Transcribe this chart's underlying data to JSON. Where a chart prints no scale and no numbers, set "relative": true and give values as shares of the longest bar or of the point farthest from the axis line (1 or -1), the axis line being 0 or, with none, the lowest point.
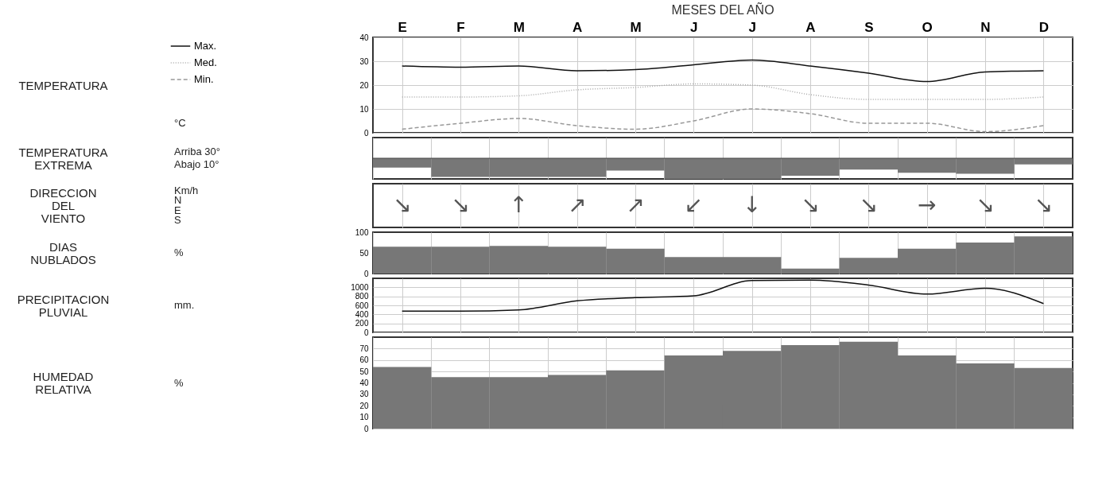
{
  "chart_data": [
    {
      "type": "line",
      "title": "MESES DEL AÑO",
      "ylabel": "TEMPERATURA",
      "annotations": [
        "°C"
      ],
      "categories": [
        "E",
        "F",
        "M",
        "A",
        "M",
        "J",
        "J",
        "A",
        "S",
        "O",
        "N",
        "D"
      ],
      "ylim": [
        0,
        40
      ],
      "yticks": [
        0,
        10,
        20,
        30,
        40
      ],
      "grid": true,
      "legend": "left",
      "series": [
        {
          "name": "Max.",
          "color": "#111111",
          "line_style": "solid",
          "values": [
            28,
            27.5,
            28,
            26,
            26.5,
            28.5,
            30.5,
            28,
            25,
            21.5,
            25.5,
            26
          ]
        },
        {
          "name": "Med.",
          "color": "#aaaaaa",
          "line_style": "dotted",
          "values": [
            15,
            15,
            15.5,
            18,
            19,
            20.5,
            20,
            16,
            14,
            14,
            14,
            15
          ]
        },
        {
          "name": "Min.",
          "color": "#999999",
          "line_style": "dashed",
          "values": [
            1.5,
            4,
            6,
            3,
            1.5,
            5,
            10,
            8,
            4,
            4,
            0.5,
            3
          ]
        }
      ]
    },
    {
      "type": "bar",
      "ylabel": "TEMPERATURA EXTREMA",
      "annotations": [
        "Arriba 30°",
        "Abajo 10°"
      ],
      "categories": [
        null,
        null,
        null,
        null,
        null,
        null,
        null,
        null,
        null,
        null,
        null,
        null
      ],
      "relative": true,
      "grid": "x",
      "tick_labels": false,
      "color": "#777777",
      "values": [
        -0.45,
        -0.9,
        -0.9,
        -0.9,
        -0.6,
        -1,
        -1,
        -0.85,
        -0.55,
        -0.7,
        -0.75,
        -0.3
      ]
    },
    {
      "type": "other",
      "ylabel": "DIRECCION DEL VIENTO",
      "annotations": [
        "Km/h",
        "N",
        "E",
        "S"
      ],
      "categories": [
        "↘",
        "↘",
        "↑",
        "↗",
        "↗",
        "↙",
        "↓",
        "↘",
        "↘",
        "→",
        "↘",
        "↘"
      ]
    },
    {
      "type": "bar",
      "ylabel": "DIAS NUBLADOS",
      "annotations": [
        "%"
      ],
      "categories": [
        null,
        null,
        null,
        null,
        null,
        null,
        null,
        null,
        null,
        null,
        null,
        null
      ],
      "ylim": [
        0,
        100
      ],
      "yticks": [
        0,
        50,
        100
      ],
      "grid": "x",
      "tick_labels": "y",
      "color": "#777777",
      "values": [
        65,
        65,
        67,
        65,
        60,
        40,
        40,
        12,
        38,
        60,
        75,
        90
      ]
    },
    {
      "type": "line",
      "ylabel": "PRECIPITACION PLUVIAL",
      "annotations": [
        "mm."
      ],
      "categories": [
        null,
        null,
        null,
        null,
        null,
        null,
        null,
        null,
        null,
        null,
        null,
        null
      ],
      "ylim": [
        0,
        1200
      ],
      "yticks": [
        0,
        200,
        400,
        600,
        800,
        1000
      ],
      "grid": true,
      "tick_labels": "y",
      "series": [
        {
          "color": "#111111",
          "line_style": "solid",
          "values": [
            470,
            470,
            500,
            700,
            770,
            810,
            1150,
            1160,
            1050,
            850,
            980,
            640
          ]
        }
      ]
    },
    {
      "type": "bar",
      "ylabel": "HUMEDAD RELATIVA",
      "annotations": [
        "%"
      ],
      "categories": [
        null,
        null,
        null,
        null,
        null,
        null,
        null,
        null,
        null,
        null,
        null,
        null
      ],
      "ylim": [
        0,
        80
      ],
      "yticks": [
        0,
        10,
        20,
        30,
        40,
        50,
        60,
        70
      ],
      "grid": true,
      "tick_labels": "y",
      "color": "#777777",
      "values": [
        54,
        45,
        45,
        47,
        51,
        64,
        68,
        73,
        76,
        64,
        57,
        53
      ]
    }
  ]
}
